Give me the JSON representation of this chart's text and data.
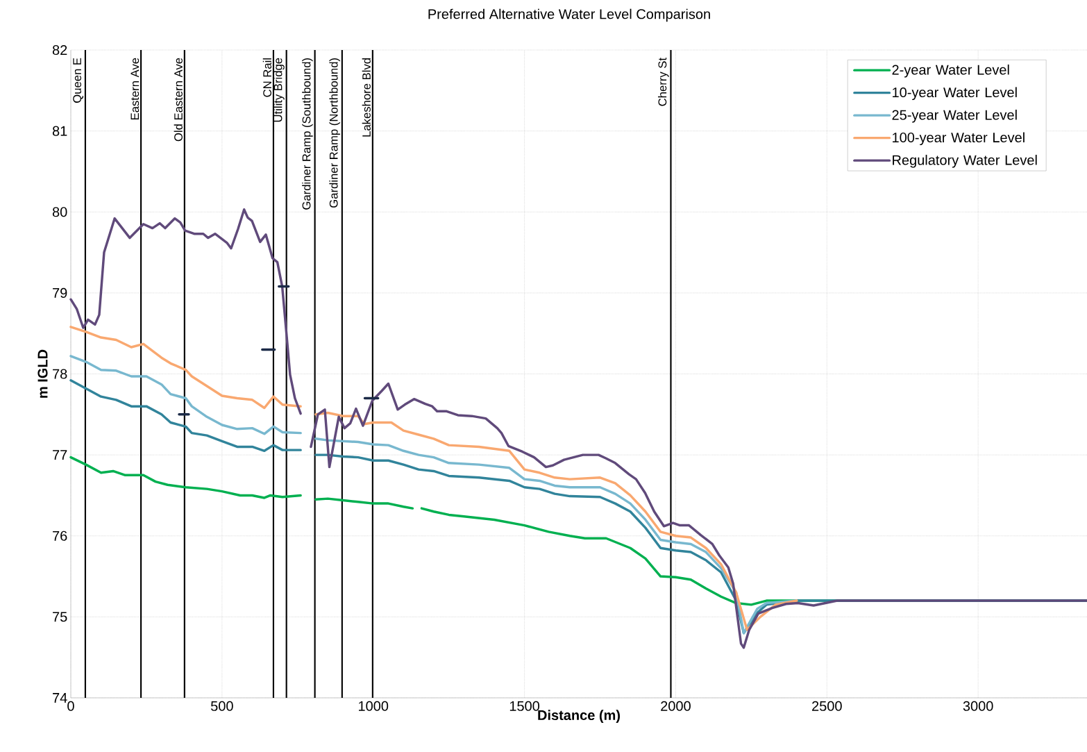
{
  "chart_data": {
    "type": "line",
    "title": "Preferred Alternative Water Level Comparison",
    "xlabel": "Distance (m)",
    "ylabel": "m IGLD",
    "xlim": [
      0,
      3360
    ],
    "ylim": [
      74,
      82
    ],
    "xticks": [
      0,
      500,
      1000,
      1500,
      2000,
      2500,
      3000
    ],
    "yticks": [
      74,
      75,
      76,
      77,
      78,
      79,
      80,
      81,
      82
    ],
    "grid": true,
    "legend": "top right",
    "series": [
      {
        "name": "2-year Water Level",
        "color": "#00b050",
        "x": [
          0,
          50,
          100,
          140,
          180,
          240,
          280,
          320,
          380,
          450,
          500,
          560,
          600,
          640,
          660,
          700,
          760,
          785,
          810,
          850,
          900,
          950,
          1000,
          1050,
          1100,
          1130,
          1145,
          1160,
          1200,
          1250,
          1300,
          1400,
          1500,
          1580,
          1650,
          1700,
          1770,
          1850,
          1900,
          1950,
          2000,
          2050,
          2100,
          2150,
          2200,
          2250,
          2300,
          2400,
          3360
        ],
        "values": [
          76.97,
          76.88,
          76.78,
          76.8,
          76.75,
          76.75,
          76.67,
          76.63,
          76.6,
          76.58,
          76.55,
          76.5,
          76.5,
          76.47,
          76.5,
          76.48,
          76.5,
          null,
          76.45,
          76.46,
          76.44,
          76.42,
          76.4,
          76.4,
          76.36,
          76.34,
          null,
          76.34,
          76.3,
          76.26,
          76.24,
          76.2,
          76.13,
          76.05,
          76.0,
          75.97,
          75.97,
          75.85,
          75.72,
          75.5,
          75.49,
          75.46,
          75.35,
          75.25,
          75.17,
          75.15,
          75.2,
          75.2,
          75.2
        ]
      },
      {
        "name": "10-year Water Level",
        "color": "#31849b",
        "x": [
          0,
          50,
          100,
          150,
          200,
          250,
          300,
          330,
          380,
          400,
          450,
          500,
          550,
          600,
          640,
          670,
          700,
          760,
          785,
          810,
          850,
          900,
          950,
          1000,
          1050,
          1100,
          1150,
          1200,
          1250,
          1350,
          1450,
          1500,
          1550,
          1600,
          1650,
          1750,
          1800,
          1850,
          1900,
          1950,
          2000,
          2050,
          2100,
          2150,
          2200,
          2225,
          2270,
          2300,
          2400,
          3360
        ],
        "values": [
          77.92,
          77.82,
          77.72,
          77.68,
          77.6,
          77.6,
          77.5,
          77.4,
          77.35,
          77.27,
          77.24,
          77.17,
          77.1,
          77.1,
          77.05,
          77.12,
          77.06,
          77.06,
          null,
          77.0,
          77.0,
          76.98,
          76.97,
          76.93,
          76.93,
          76.88,
          76.82,
          76.8,
          76.74,
          76.72,
          76.68,
          76.6,
          76.58,
          76.52,
          76.49,
          76.48,
          76.4,
          76.3,
          76.1,
          75.85,
          75.82,
          75.8,
          75.7,
          75.55,
          75.2,
          74.8,
          75.05,
          75.15,
          75.2,
          75.2
        ]
      },
      {
        "name": "25-year Water Level",
        "color": "#78b8cf",
        "x": [
          0,
          50,
          100,
          150,
          200,
          250,
          300,
          330,
          380,
          400,
          450,
          500,
          550,
          600,
          640,
          670,
          700,
          760,
          785,
          810,
          850,
          950,
          1000,
          1050,
          1100,
          1150,
          1200,
          1250,
          1350,
          1450,
          1500,
          1550,
          1600,
          1650,
          1750,
          1800,
          1850,
          1900,
          1950,
          2000,
          2050,
          2100,
          2150,
          2200,
          2225,
          2270,
          2300,
          2400
        ],
        "values": [
          78.22,
          78.15,
          78.05,
          78.04,
          77.97,
          77.97,
          77.87,
          77.75,
          77.7,
          77.6,
          77.47,
          77.37,
          77.32,
          77.33,
          77.26,
          77.35,
          77.28,
          77.27,
          null,
          77.2,
          77.18,
          77.16,
          77.13,
          77.12,
          77.05,
          77.0,
          76.97,
          76.9,
          76.88,
          76.84,
          76.7,
          76.68,
          76.62,
          76.6,
          76.6,
          76.52,
          76.4,
          76.2,
          75.95,
          75.92,
          75.9,
          75.8,
          75.6,
          75.3,
          74.8,
          75.1,
          75.17,
          75.2
        ]
      },
      {
        "name": "100-year Water Level",
        "color": "#f9a870",
        "x": [
          0,
          50,
          100,
          150,
          200,
          240,
          300,
          330,
          380,
          400,
          450,
          500,
          550,
          600,
          640,
          670,
          700,
          760,
          785,
          810,
          850,
          900,
          950,
          970,
          1000,
          1060,
          1100,
          1150,
          1200,
          1250,
          1350,
          1450,
          1500,
          1550,
          1600,
          1650,
          1750,
          1800,
          1850,
          1900,
          1950,
          2000,
          2050,
          2100,
          2150,
          2200,
          2236,
          2280,
          2330,
          2400
        ],
        "values": [
          78.58,
          78.52,
          78.45,
          78.42,
          78.33,
          78.37,
          78.2,
          78.13,
          78.05,
          77.97,
          77.85,
          77.73,
          77.7,
          77.68,
          77.58,
          77.72,
          77.62,
          77.6,
          null,
          77.5,
          77.52,
          77.48,
          77.48,
          77.38,
          77.4,
          77.4,
          77.3,
          77.25,
          77.2,
          77.12,
          77.1,
          77.05,
          76.82,
          76.78,
          76.72,
          76.7,
          76.72,
          76.65,
          76.5,
          76.3,
          76.05,
          76.0,
          75.98,
          75.85,
          75.65,
          75.3,
          74.84,
          75.0,
          75.15,
          75.2
        ]
      },
      {
        "name": "Regulatory Water Level",
        "color": "#604a7b",
        "x": [
          0,
          20,
          41,
          57,
          80,
          94,
          110,
          145,
          195,
          240,
          270,
          294,
          312,
          344,
          362,
          378,
          408,
          438,
          454,
          477,
          516,
          530,
          553,
          573,
          585,
          599,
          626,
          645,
          667,
          683,
          699,
          713,
          725,
          741,
          760,
          777,
          794,
          817,
          840,
          855,
          886,
          905,
          924,
          943,
          966,
          997,
          1028,
          1050,
          1081,
          1104,
          1135,
          1172,
          1195,
          1211,
          1241,
          1280,
          1326,
          1372,
          1410,
          1424,
          1447,
          1493,
          1532,
          1571,
          1594,
          1631,
          1693,
          1745,
          1768,
          1800,
          1846,
          1869,
          1899,
          1929,
          1961,
          1991,
          2014,
          2044,
          2083,
          2121,
          2144,
          2174,
          2190,
          2204,
          2216,
          2225,
          2243,
          2273,
          2319,
          2365,
          2404,
          2456,
          2495,
          2534,
          3360
        ],
        "values": [
          78.92,
          78.8,
          78.57,
          78.67,
          78.61,
          78.73,
          79.5,
          79.92,
          79.68,
          79.85,
          79.8,
          79.86,
          79.8,
          79.92,
          79.87,
          79.77,
          79.73,
          79.73,
          79.68,
          79.73,
          79.62,
          79.55,
          79.79,
          80.03,
          79.93,
          79.89,
          79.63,
          79.72,
          79.43,
          79.38,
          79.08,
          78.5,
          77.99,
          77.7,
          77.51,
          null,
          77.1,
          77.5,
          77.56,
          76.85,
          77.47,
          77.33,
          77.39,
          77.57,
          77.36,
          77.67,
          77.79,
          77.88,
          77.56,
          77.62,
          77.69,
          77.63,
          77.6,
          77.54,
          77.54,
          77.49,
          77.48,
          77.45,
          77.33,
          77.27,
          77.11,
          77.04,
          76.97,
          76.85,
          76.87,
          76.94,
          77.0,
          77.0,
          76.96,
          76.9,
          76.76,
          76.7,
          76.53,
          76.3,
          76.12,
          76.16,
          76.13,
          76.13,
          76.01,
          75.9,
          75.76,
          75.61,
          75.41,
          75.01,
          74.67,
          74.62,
          74.84,
          75.04,
          75.11,
          75.16,
          75.17,
          75.14,
          75.17,
          75.2,
          75.2
        ]
      },
      {
        "color": "#1b2a47",
        "x": [
          358,
          390,
          400,
          633,
          674,
          680,
          688,
          720,
          730,
          972,
          1016
        ],
        "values": [
          77.5,
          77.5,
          null,
          78.3,
          78.3,
          null,
          79.08,
          79.08,
          null,
          77.7,
          77.7
        ]
      }
    ],
    "ref_lines": [
      {
        "axis": "x",
        "value": 48,
        "label": "Queen E",
        "color": "#000000"
      },
      {
        "axis": "x",
        "value": 232,
        "label": "Eastern Ave",
        "color": "#000000"
      },
      {
        "axis": "x",
        "value": 376,
        "label": "Old Eastern Ave",
        "color": "#000000"
      },
      {
        "axis": "x",
        "value": 670,
        "label": "CN Rail",
        "color": "#000000"
      },
      {
        "axis": "x",
        "value": 713,
        "label": "Utility Bridge",
        "color": "#000000"
      },
      {
        "axis": "x",
        "value": 807,
        "label": "Gardiner Ramp (Southbound)",
        "color": "#000000"
      },
      {
        "axis": "x",
        "value": 897,
        "label": "Gardiner Ramp (Northbound)",
        "color": "#000000"
      },
      {
        "axis": "x",
        "value": 998,
        "label": "Lakeshore Blvd",
        "color": "#000000"
      },
      {
        "axis": "x",
        "value": 1984,
        "label": "Cherry St",
        "color": "#000000"
      }
    ]
  }
}
